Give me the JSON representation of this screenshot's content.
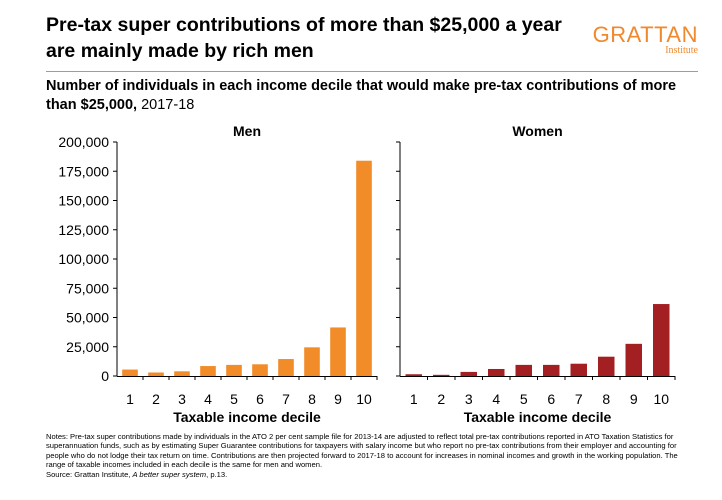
{
  "title": "Pre-tax super contributions of more than $25,000 a year are mainly made by rich men",
  "brand": {
    "name": "GRATTAN",
    "sub": "Institute",
    "accent": "#f0892e"
  },
  "subtitle": {
    "strong": "Number of individuals in each income decile that would make pre-tax contributions of more than $25,000,",
    "year": " 2017-18"
  },
  "chart_data": {
    "type": "bar",
    "x_label": "Taxable income decile",
    "categories": [
      "1",
      "2",
      "3",
      "4",
      "5",
      "6",
      "7",
      "8",
      "9",
      "10"
    ],
    "ylim": [
      0,
      200000
    ],
    "y_ticks": [
      "0",
      "25,000",
      "50,000",
      "75,000",
      "100,000",
      "125,000",
      "150,000",
      "175,000",
      "200,000"
    ],
    "y_tick_values": [
      0,
      25000,
      50000,
      75000,
      100000,
      125000,
      150000,
      175000,
      200000
    ],
    "panels": [
      {
        "name": "Men",
        "color": "#f28c28",
        "values": [
          5500,
          3000,
          4000,
          8500,
          9500,
          10000,
          14500,
          24500,
          41500,
          184000
        ]
      },
      {
        "name": "Women",
        "color": "#a31f22",
        "values": [
          1500,
          1000,
          3500,
          6000,
          9500,
          9500,
          10500,
          16500,
          27500,
          61500
        ]
      }
    ]
  },
  "notes": {
    "text": "Notes: Pre-tax super contributions made by individuals in the ATO 2 per cent sample file for 2013-14 are adjusted to reflect total pre-tax contributions reported in ATO Taxation Statistics for superannuation funds, such as by estimating Super Guarantee contributions for taxpayers with salary income but who report no pre-tax contributions from their employer and accounting for people who do not lodge their tax return on time. Contributions are then projected forward to 2017-18 to account for increases in nominal incomes and growth in the working population. The range of taxable incomes included in each decile is the same for men and women.",
    "source_prefix": "Source: Grattan Institute, ",
    "source_title": "A better super system",
    "source_suffix": ", p.13."
  }
}
